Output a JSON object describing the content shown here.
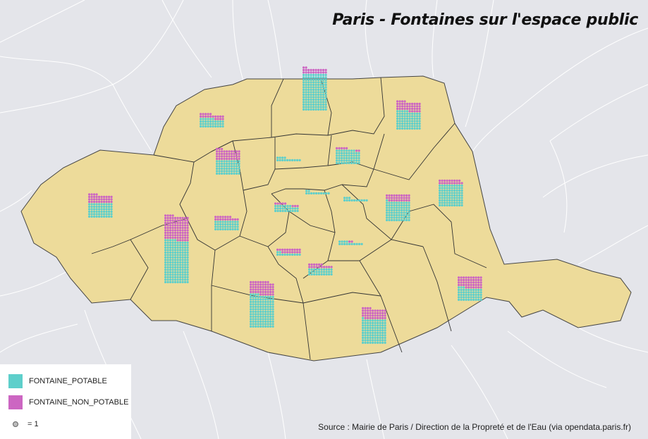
{
  "title": "Paris - Fontaines sur l'espace public",
  "legend": {
    "potable_label": "FONTAINE_POTABLE",
    "non_potable_label": "FONTAINE_NON_POTABLE",
    "unit_label": "= 1"
  },
  "source": "Source : Mairie de Paris / Direction de la Propreté et de l'Eau (via opendata.paris.fr)",
  "colors": {
    "background": "#e4e5ea",
    "paris_fill": "#eddb9a",
    "potable": "#5ecfcb",
    "non_potable": "#cc66c2",
    "arrondissement_border": "#333333",
    "commune_border": "#ffffff"
  },
  "chart_data": {
    "type": "waffle",
    "unit": 1,
    "series": [
      "FONTAINE_POTABLE",
      "FONTAINE_NON_POTABLE"
    ],
    "arrondissements": [
      {
        "id": "1",
        "potable": 12,
        "non_potable": 0
      },
      {
        "id": "2",
        "potable": 14,
        "non_potable": 0
      },
      {
        "id": "3",
        "potable": 13,
        "non_potable": 0
      },
      {
        "id": "4",
        "potable": 14,
        "non_potable": 2
      },
      {
        "id": "5",
        "potable": 30,
        "non_potable": 16
      },
      {
        "id": "6",
        "potable": 12,
        "non_potable": 18
      },
      {
        "id": "7",
        "potable": 40,
        "non_potable": 17
      },
      {
        "id": "8",
        "potable": 60,
        "non_potable": 43
      },
      {
        "id": "9",
        "potable": 27,
        "non_potable": 8
      },
      {
        "id": "10",
        "potable": 58,
        "non_potable": 7
      },
      {
        "id": "11",
        "potable": 81,
        "non_potable": 29
      },
      {
        "id": "12",
        "potable": 53,
        "non_potable": 47
      },
      {
        "id": "13",
        "potable": 75,
        "non_potable": 39
      },
      {
        "id": "14",
        "potable": 134,
        "non_potable": 54
      },
      {
        "id": "15",
        "potable": 175,
        "non_potable": 99
      },
      {
        "id": "16",
        "potable": 60,
        "non_potable": 34
      },
      {
        "id": "17",
        "potable": 36,
        "non_potable": 19
      },
      {
        "id": "18",
        "potable": 150,
        "non_potable": 22
      },
      {
        "id": "19",
        "potable": 90,
        "non_potable": 19
      },
      {
        "id": "20",
        "potable": 101,
        "non_potable": 43
      }
    ]
  }
}
